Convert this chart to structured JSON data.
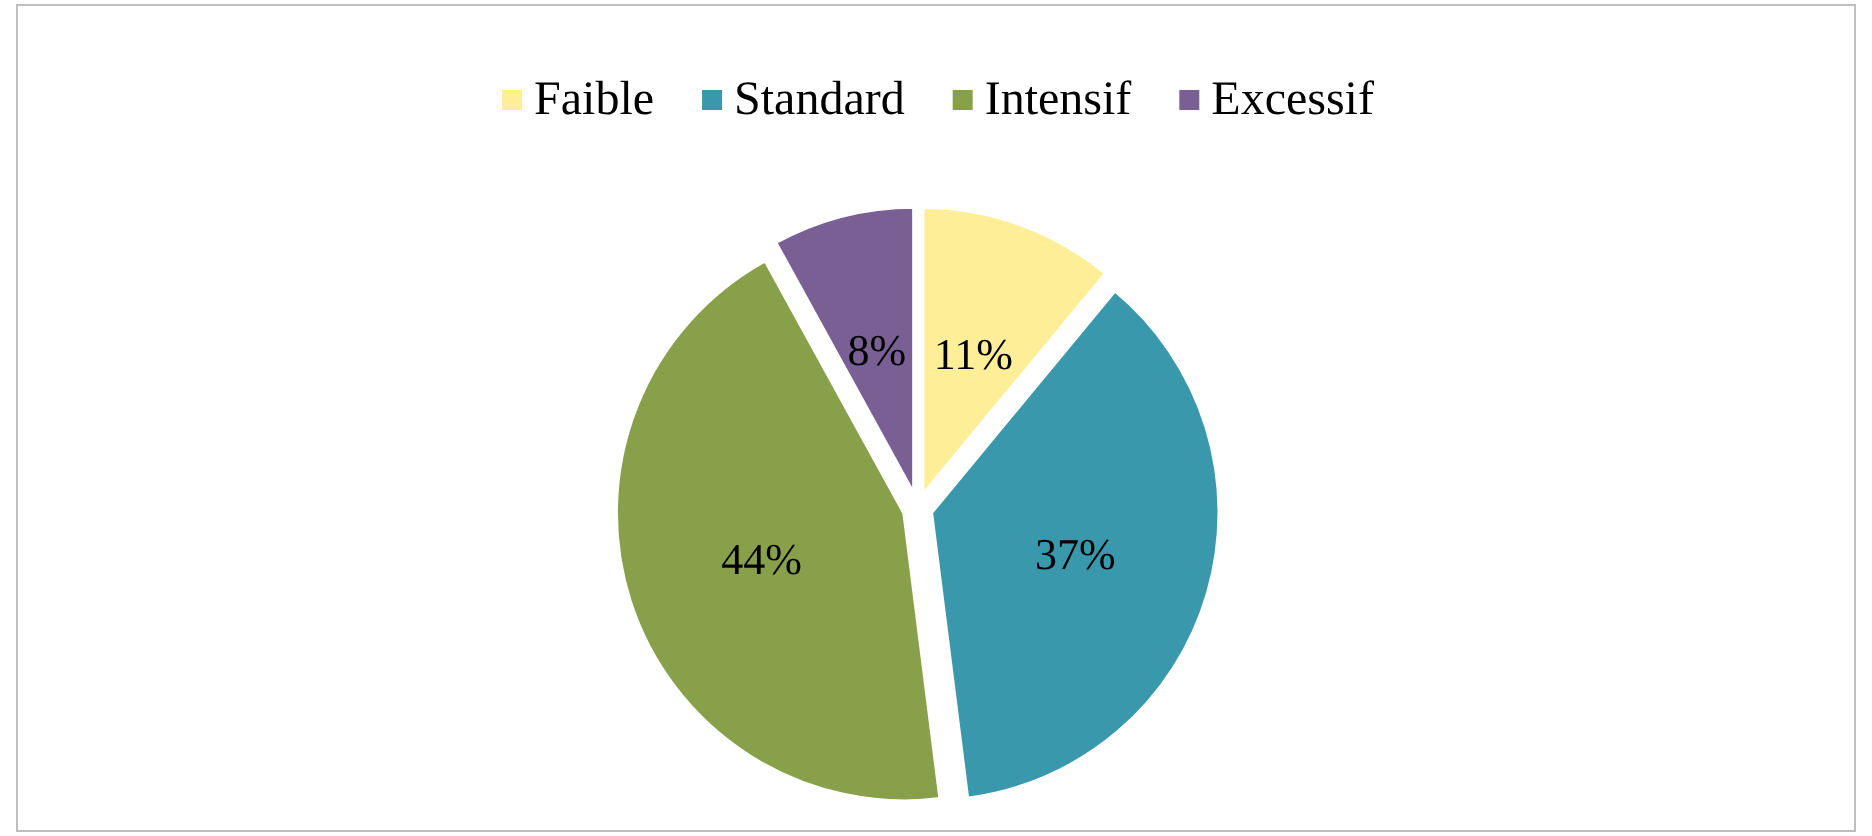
{
  "chart_data": {
    "type": "pie",
    "categories": [
      "Faible",
      "Standard",
      "Intensif",
      "Excessif"
    ],
    "values": [
      11,
      37,
      44,
      8
    ],
    "value_labels": [
      "11%",
      "37%",
      "44%",
      "8%"
    ],
    "colors": [
      "#fdee97",
      "#3a98ad",
      "#89a04b",
      "#7a5f94"
    ],
    "legend": "top"
  }
}
